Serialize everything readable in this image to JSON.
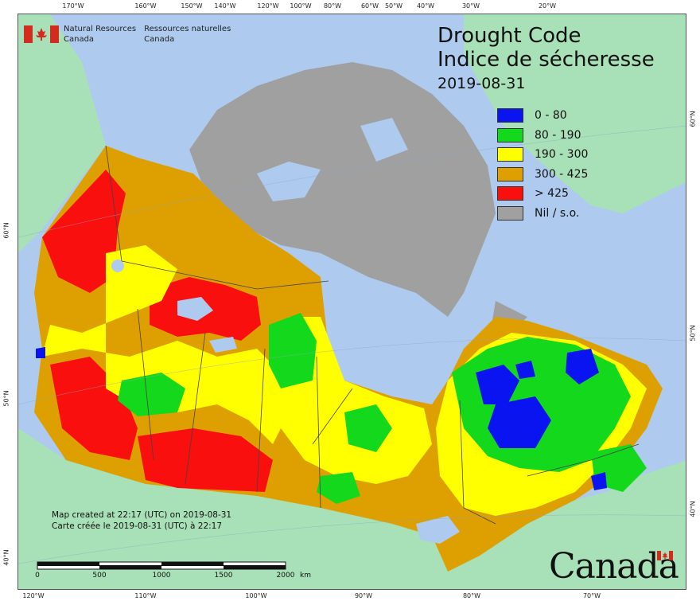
{
  "title": {
    "en": "Drought Code",
    "fr": "Indice de sécheresse",
    "date": "2019-08-31"
  },
  "agency": {
    "en_line1": "Natural Resources",
    "en_line2": "Canada",
    "fr_line1": "Ressources naturelles",
    "fr_line2": "Canada"
  },
  "legend": [
    {
      "label": "0 - 80",
      "color": "#0a14f0"
    },
    {
      "label": "80 - 190",
      "color": "#14d81c"
    },
    {
      "label": "190 - 300",
      "color": "#ffff00"
    },
    {
      "label": "300 - 425",
      "color": "#dea000"
    },
    {
      "label": "> 425",
      "color": "#fa0f0f"
    },
    {
      "label": "Nil / s.o.",
      "color": "#a0a0a0"
    }
  ],
  "credits": {
    "en": "Map created at 22:17 (UTC) on 2019-08-31",
    "fr": "Carte créée le 2019-08-31 (UTC) à 22:17"
  },
  "scale": {
    "labels": [
      "0",
      "500",
      "1000",
      "1500",
      "2000"
    ],
    "unit": "km"
  },
  "graticule": {
    "top": [
      "170°W",
      "160°W",
      "150°W",
      "140°W",
      "120°W",
      "100°W",
      "80°W",
      "60°W",
      "50°W",
      "40°W",
      "30°W",
      "20°W"
    ],
    "bottom": [
      "120°W",
      "110°W",
      "100°W",
      "90°W",
      "80°W",
      "70°W"
    ],
    "left": [
      "60°N",
      "50°N",
      "40°N"
    ],
    "right": [
      "60°N",
      "50°N",
      "40°N"
    ]
  },
  "wordmark": "Canada",
  "colors": {
    "ocean": "#aecbef",
    "land_outside": "#a8e0b8",
    "nil": "#a0a0a0"
  }
}
